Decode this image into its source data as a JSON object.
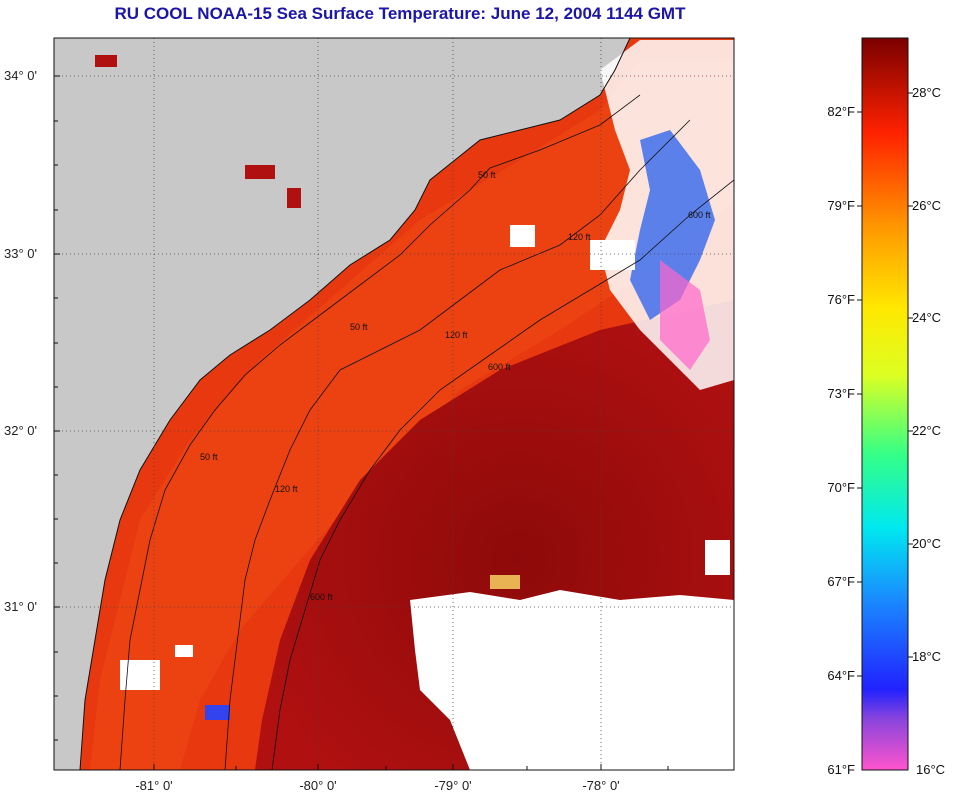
{
  "title": "RU COOL  NOAA-15  Sea Surface Temperature:  June 12, 2004 1144 GMT",
  "map": {
    "lat_labels": [
      {
        "lat": 34,
        "label": "34° 0'"
      },
      {
        "lat": 33,
        "label": "33° 0'"
      },
      {
        "lat": 32,
        "label": "32° 0'"
      },
      {
        "lat": 31,
        "label": "31° 0'"
      }
    ],
    "lon_labels": [
      {
        "lon": -81,
        "label": "-81° 0'"
      },
      {
        "lon": -80,
        "label": "-80° 0'"
      },
      {
        "lon": -79,
        "label": "-79° 0'"
      },
      {
        "lon": -78,
        "label": "-78° 0'"
      }
    ],
    "contour_labels": [
      "50 ft",
      "120 ft",
      "600 ft"
    ],
    "colors": {
      "land": "#c8c8c8",
      "cloud": "#ffffff",
      "warm_water": "#e8320f",
      "gulf_stream": "#9c0d0d"
    }
  },
  "colorbar": {
    "f_labels": [
      "82°F",
      "79°F",
      "76°F",
      "73°F",
      "70°F",
      "67°F",
      "64°F",
      "61°F"
    ],
    "c_labels": [
      "28°C",
      "26°C",
      "24°C",
      "22°C",
      "20°C",
      "18°C",
      "16°C"
    ]
  }
}
